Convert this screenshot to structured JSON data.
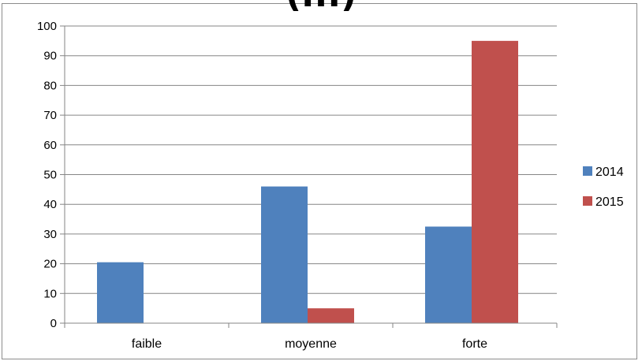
{
  "chart_data": {
    "type": "bar",
    "title": "(...)",
    "categories": [
      "faible",
      "moyenne",
      "forte"
    ],
    "series": [
      {
        "name": "2014",
        "color": "#4F81BD",
        "values": [
          20.5,
          46,
          32.5
        ]
      },
      {
        "name": "2015",
        "color": "#C0504D",
        "values": [
          0,
          5,
          95
        ]
      }
    ],
    "ylim": [
      0,
      100
    ],
    "yticks": [
      0,
      10,
      20,
      30,
      40,
      50,
      60,
      70,
      80,
      90,
      100
    ],
    "grid": true,
    "legend": "right"
  }
}
